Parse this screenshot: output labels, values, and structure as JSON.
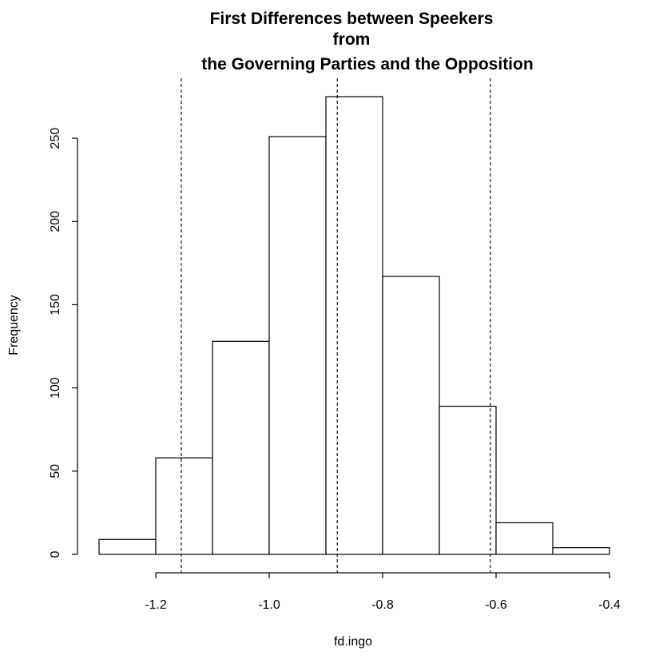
{
  "chart_data": {
    "type": "bar",
    "title": [
      "First Differences between Speekers",
      "from",
      "the Governing Parties and the Opposition"
    ],
    "xlabel": "fd.ingo",
    "ylabel": "Frequency",
    "bins": [
      {
        "from": -1.3,
        "to": -1.2,
        "count": 9
      },
      {
        "from": -1.2,
        "to": -1.1,
        "count": 58
      },
      {
        "from": -1.1,
        "to": -1.0,
        "count": 128
      },
      {
        "from": -1.0,
        "to": -0.9,
        "count": 251
      },
      {
        "from": -0.9,
        "to": -0.8,
        "count": 275
      },
      {
        "from": -0.8,
        "to": -0.7,
        "count": 167
      },
      {
        "from": -0.7,
        "to": -0.6,
        "count": 89
      },
      {
        "from": -0.6,
        "to": -0.5,
        "count": 19
      },
      {
        "from": -0.5,
        "to": -0.4,
        "count": 4
      }
    ],
    "xlim": [
      -1.3,
      -0.4
    ],
    "ylim": [
      0,
      275
    ],
    "x_ticks": [
      -1.2,
      -1.0,
      -0.8,
      -0.6,
      -0.4
    ],
    "x_tick_labels": [
      "-1.2",
      "-1.0",
      "-0.8",
      "-0.6",
      "-0.4"
    ],
    "y_ticks": [
      0,
      50,
      100,
      150,
      200,
      250
    ],
    "y_tick_labels": [
      "0",
      "50",
      "100",
      "150",
      "200",
      "250"
    ],
    "reference_lines": [
      -1.155,
      -0.88,
      -0.61
    ],
    "grid": false,
    "colors": {
      "bar_fill": "#ffffff",
      "bar_stroke": "#000000",
      "line": "#000000"
    }
  }
}
